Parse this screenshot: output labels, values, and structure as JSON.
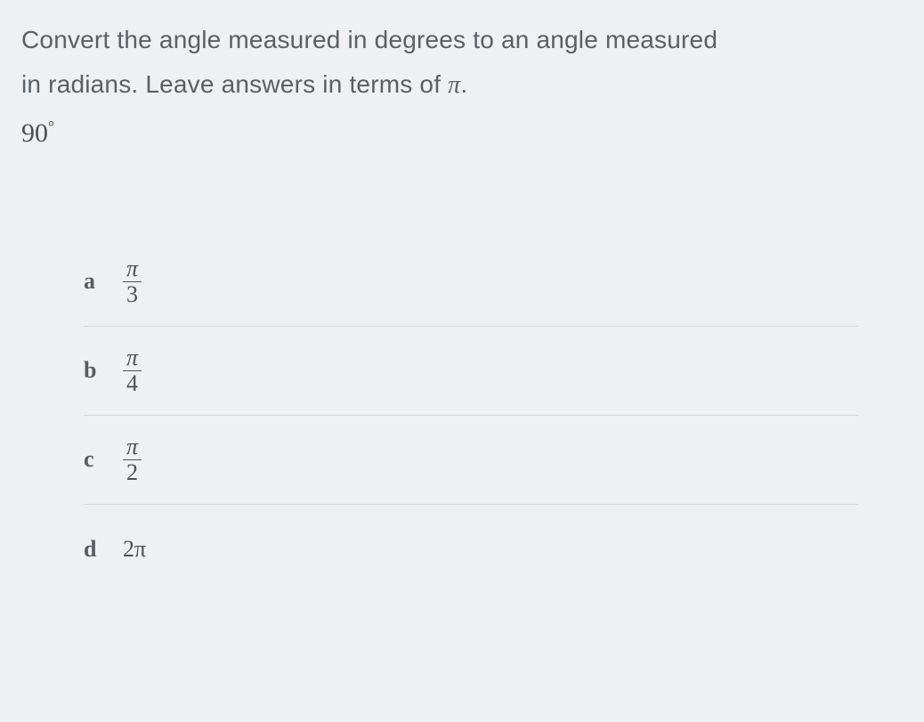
{
  "question": {
    "line1": "Convert the angle measured in degrees to an angle measured",
    "line2_prefix": "in radians. Leave answers in terms of ",
    "pi": "π",
    "line2_suffix": ".",
    "angle_value": "90",
    "angle_unit": "°"
  },
  "choices": {
    "a": {
      "letter": "a",
      "type": "fraction",
      "num": "π",
      "den": "3"
    },
    "b": {
      "letter": "b",
      "type": "fraction",
      "num": "π",
      "den": "4"
    },
    "c": {
      "letter": "c",
      "type": "fraction",
      "num": "π",
      "den": "2"
    },
    "d": {
      "letter": "d",
      "type": "plain",
      "value": "2π"
    }
  },
  "style": {
    "background_color": "#eef0f1",
    "text_color": "#5a6065",
    "math_color": "#4c5256",
    "divider_color": "#d6d9db",
    "question_fontsize": 28,
    "choice_fontsize": 26
  }
}
